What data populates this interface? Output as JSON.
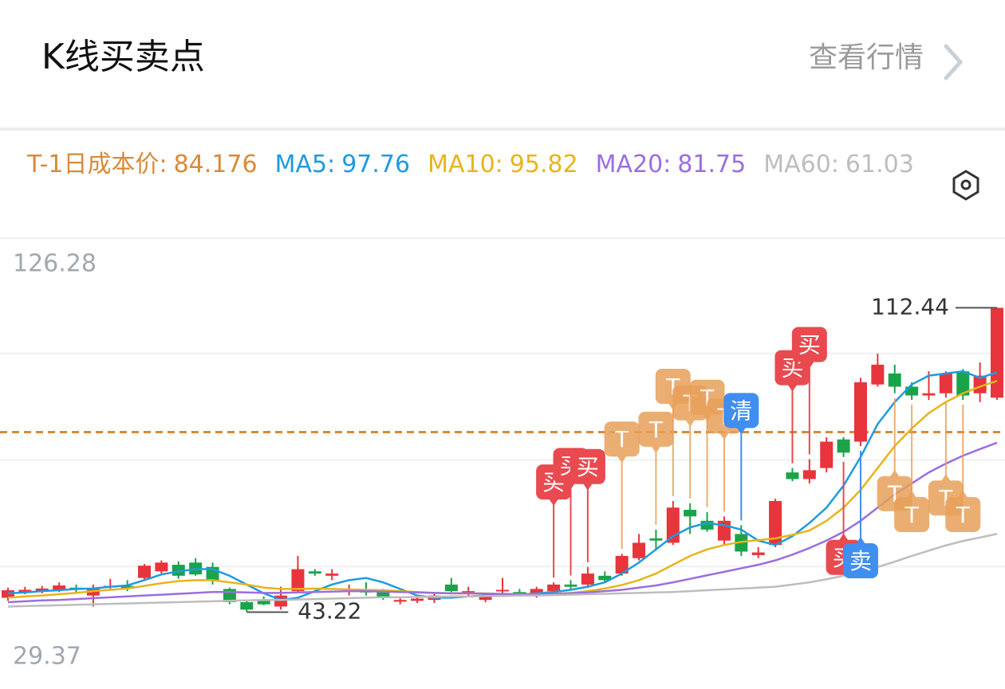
{
  "header": {
    "title": "K线买卖点",
    "link": "查看行情"
  },
  "chart_data": {
    "type": "candlestick",
    "cost": {
      "label": "T-1日成本价:",
      "value": 84.176,
      "color": "#d98a3a"
    },
    "series": [
      {
        "label": "MA5:",
        "current": 97.76,
        "color": "#1e9be0",
        "values": [
          47.5,
          47.7,
          48,
          48.2,
          48.5,
          48.6,
          49,
          49.3,
          50.5,
          51.8,
          52.5,
          53,
          53,
          51.5,
          49.5,
          47.5,
          46,
          46.5,
          48,
          49.5,
          50.5,
          51,
          50,
          48.5,
          47,
          46.5,
          46.5,
          46.8,
          47,
          47.3,
          47.2,
          47.5,
          47.8,
          48.3,
          49,
          50,
          52,
          54.5,
          57.5,
          60.5,
          62.5,
          63.5,
          63,
          62,
          59.5,
          58.5,
          60.5,
          63.5,
          67,
          72,
          78.5,
          86,
          91,
          95,
          97,
          97.5,
          98,
          96.5,
          97.76
        ]
      },
      {
        "label": "MA10:",
        "current": 95.82,
        "color": "#e8b41c",
        "values": [
          46.5,
          46.8,
          47,
          47.3,
          47.6,
          48,
          48.3,
          48.6,
          49.2,
          49.8,
          50.3,
          50.5,
          50.5,
          50,
          49.5,
          48.8,
          48.5,
          48.5,
          48.6,
          48.5,
          48.4,
          48.3,
          48.2,
          48,
          47.8,
          47.6,
          47.5,
          47.5,
          47.5,
          47.3,
          47.3,
          47.3,
          47.4,
          47.6,
          48,
          48.6,
          49.4,
          50.5,
          52,
          54,
          56,
          57.5,
          58.5,
          59.2,
          59.6,
          60,
          60.8,
          61.8,
          64,
          67,
          71,
          76,
          81,
          85,
          88.5,
          91,
          93,
          94.5,
          95.82
        ]
      },
      {
        "label": "MA20:",
        "current": 81.75,
        "color": "#9b6ee0",
        "values": [
          45.5,
          45.7,
          45.9,
          46,
          46.2,
          46.4,
          46.6,
          46.8,
          47,
          47.2,
          47.4,
          47.6,
          47.8,
          47.8,
          47.7,
          47.6,
          47.6,
          47.7,
          47.8,
          47.9,
          48,
          48,
          47.9,
          47.8,
          47.7,
          47.6,
          47.5,
          47.5,
          47.4,
          47.4,
          47.3,
          47.3,
          47.4,
          47.5,
          47.7,
          48,
          48.3,
          48.8,
          49.3,
          50,
          50.8,
          51.6,
          52.4,
          53.2,
          54,
          55,
          56.3,
          57.8,
          59.5,
          61.5,
          64,
          67,
          70,
          72.5,
          75,
          77,
          78.8,
          80.3,
          81.75
        ]
      },
      {
        "label": "MA60:",
        "current": 61.03,
        "color": "#bdbdbd",
        "values": [
          44.5,
          44.6,
          44.7,
          44.8,
          44.9,
          45,
          45.1,
          45.2,
          45.3,
          45.4,
          45.5,
          45.6,
          45.7,
          45.8,
          45.9,
          46,
          46,
          46.1,
          46.2,
          46.3,
          46.4,
          46.5,
          46.6,
          46.6,
          46.7,
          46.7,
          46.8,
          46.8,
          46.9,
          46.9,
          47,
          47,
          47.1,
          47.2,
          47.3,
          47.4,
          47.5,
          47.6,
          47.7,
          47.8,
          48,
          48.2,
          48.4,
          48.6,
          48.8,
          49,
          49.5,
          50,
          50.7,
          51.5,
          52.5,
          53.5,
          54.7,
          56,
          57.2,
          58.4,
          59.4,
          60.2,
          61.03
        ]
      }
    ],
    "open": [
      46.5,
      47.8,
      48,
      48.3,
      48.8,
      47,
      49,
      49.2,
      51,
      52.5,
      54,
      54.5,
      53.5,
      48.5,
      45.5,
      46,
      44.5,
      48,
      52.5,
      51.5,
      47.8,
      48.3,
      48,
      45.6,
      45.8,
      46,
      49.5,
      47.5,
      46,
      48,
      47.8,
      47,
      48,
      49.5,
      49.5,
      51.5,
      52,
      55.5,
      60,
      59,
      66.5,
      64,
      59.5,
      61,
      56.2,
      58.5,
      75,
      73.5,
      76,
      82.5,
      82,
      95,
      97.5,
      94.5,
      92.5,
      93,
      98,
      93,
      92
    ],
    "close": [
      48.2,
      48.3,
      48.6,
      49.3,
      48.3,
      48.5,
      49.2,
      48.6,
      53.8,
      54.5,
      51.5,
      51.8,
      50.5,
      45.5,
      43.8,
      45,
      47,
      53,
      52,
      52,
      48.5,
      47.7,
      46.5,
      46,
      46.3,
      47,
      48,
      48,
      47,
      48.3,
      47.2,
      48.5,
      49.5,
      49,
      52,
      50.5,
      56,
      59,
      59.5,
      67,
      65,
      62,
      64,
      57,
      56.8,
      68.5,
      73.5,
      75.5,
      82,
      79.5,
      95.5,
      99.5,
      94.5,
      92.5,
      93,
      97.5,
      92.5,
      97,
      112.44
    ],
    "high": [
      48.8,
      49,
      49.2,
      50,
      49.5,
      49.5,
      50.8,
      50.5,
      54.2,
      55,
      54.8,
      55.5,
      54.5,
      48.8,
      45.8,
      46.8,
      49,
      56,
      53,
      53,
      49.5,
      50,
      48.5,
      46.5,
      47,
      47.5,
      51,
      49,
      47.5,
      51,
      48.5,
      49,
      50,
      50.5,
      53.5,
      52.5,
      56.5,
      61,
      62,
      68.5,
      68,
      66,
      65,
      63,
      58,
      69,
      76,
      78,
      83,
      83,
      96.5,
      102,
      99.5,
      95.5,
      98,
      98,
      98.5,
      100,
      112.44
    ],
    "low": [
      45.8,
      47.3,
      47.5,
      47.8,
      47.5,
      44.5,
      48.5,
      48,
      50.5,
      52,
      50.8,
      51.5,
      49.5,
      45,
      43.22,
      44.8,
      43.8,
      47.5,
      51.5,
      50.5,
      47,
      47,
      46,
      45,
      45.3,
      45.3,
      47.8,
      46.8,
      45.5,
      47.5,
      46.8,
      46.5,
      47.5,
      48.5,
      49,
      50,
      51.5,
      55,
      57.5,
      58.5,
      61,
      61.5,
      58.5,
      56,
      55.5,
      58,
      73,
      72.5,
      75,
      78.5,
      81,
      94.5,
      93,
      91.5,
      91.5,
      92,
      91.5,
      91,
      91.5
    ],
    "up_color": "#e8343b",
    "down_color": "#1aa34a",
    "ylim": [
      29.37,
      126.28
    ],
    "yticks": [
      29.37,
      {
        "value": 53.6,
        "label": null
      },
      {
        "value": 77.83,
        "label": null
      },
      {
        "value": 102.05,
        "label": null
      },
      126.28
    ],
    "grid": true,
    "annotations": [
      {
        "value": 112.44,
        "at": 58
      },
      {
        "value": 43.22,
        "at": 14
      }
    ],
    "signals": [
      {
        "at": 32,
        "label": "买",
        "pos": "above",
        "color": "#e84a4f"
      },
      {
        "at": 33,
        "label": "买",
        "pos": "above",
        "color": "#e84a4f"
      },
      {
        "at": 34,
        "label": "买",
        "pos": "above",
        "color": "#e84a4f"
      },
      {
        "at": 36,
        "label": "T",
        "pos": "above",
        "color": "#e8a05a"
      },
      {
        "at": 38,
        "label": "T",
        "pos": "above",
        "color": "#e8a05a"
      },
      {
        "at": 39,
        "label": "T",
        "pos": "above",
        "color": "#e8a05a"
      },
      {
        "at": 40,
        "label": "T",
        "pos": "above",
        "color": "#e8a05a"
      },
      {
        "at": 41,
        "label": "T",
        "pos": "above",
        "color": "#e8a05a"
      },
      {
        "at": 42,
        "label": "T",
        "pos": "above",
        "color": "#e8a05a"
      },
      {
        "at": 43,
        "label": "清",
        "pos": "above",
        "color": "#3f8ef0"
      },
      {
        "at": 46,
        "label": "买",
        "pos": "above",
        "color": "#e84a4f"
      },
      {
        "at": 47,
        "label": "买",
        "pos": "above",
        "color": "#e84a4f"
      },
      {
        "at": 49,
        "label": "买",
        "pos": "below",
        "color": "#e84a4f"
      },
      {
        "at": 50,
        "label": "卖",
        "pos": "below",
        "color": "#3f8ef0"
      },
      {
        "at": 52,
        "label": "T",
        "pos": "below",
        "color": "#e8a05a"
      },
      {
        "at": 53,
        "label": "T",
        "pos": "below",
        "color": "#e8a05a"
      },
      {
        "at": 55,
        "label": "T",
        "pos": "below",
        "color": "#e8a05a"
      },
      {
        "at": 56,
        "label": "T",
        "pos": "below",
        "color": "#e8a05a"
      }
    ]
  }
}
